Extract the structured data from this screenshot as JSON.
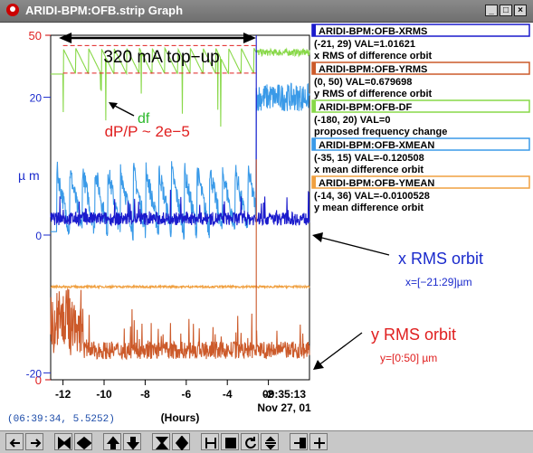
{
  "window": {
    "title": "ARIDI-BPM:OFB.strip Graph",
    "minimize": "_",
    "maximize": "□",
    "close": "×"
  },
  "coordinate_readout": "(06:39:34, 5.5252)",
  "colors": {
    "xrms": "#1a1acc",
    "yrms": "#cc5a2a",
    "df": "#88d848",
    "xmean": "#3a9ae8",
    "ymean": "#f0a040",
    "annot_blue": "#1a2acc",
    "annot_red": "#e02020",
    "annot_green": "#2ab82a"
  },
  "toolbar": {
    "icons": [
      "pan-left-icon",
      "pan-right-icon",
      "zoom-in-x-icon",
      "zoom-out-x-icon",
      "pan-up-icon",
      "pan-down-icon",
      "zoom-in-y-icon",
      "zoom-out-y-icon",
      "autoscale-icon",
      "fill-icon",
      "refresh-icon",
      "y-adjust-icon",
      "data-icon",
      "crosshair-icon"
    ]
  },
  "legend": [
    {
      "pv": "ARIDI-BPM:OFB-XRMS",
      "range": "(-21, 29) VAL=1.01621",
      "desc": "x RMS of difference orbit",
      "color": "#1a1acc"
    },
    {
      "pv": "ARIDI-BPM:OFB-YRMS",
      "range": "(0, 50) VAL=0.679698",
      "desc": "y RMS of difference orbit",
      "color": "#cc5a2a"
    },
    {
      "pv": "ARIDI-BPM:OFB-DF",
      "range": "(-180, 20) VAL=0",
      "desc": "proposed frequency change",
      "color": "#88d848"
    },
    {
      "pv": "ARIDI-BPM:OFB-XMEAN",
      "range": "(-35, 15) VAL=-0.120508",
      "desc": "x mean difference orbit",
      "color": "#3a9ae8"
    },
    {
      "pv": "ARIDI-BPM:OFB-YMEAN",
      "range": "(-14, 36) VAL=-0.0100528",
      "desc": "y mean difference orbit",
      "color": "#f0a040"
    }
  ],
  "annotations": {
    "topup": "320 mA top−up",
    "df": "df",
    "dpp": "dP/P ~ 2e−5",
    "xrms": "x RMS orbit",
    "xrange": "x=[−21:29]µm",
    "yrms": "y RMS orbit",
    "yrange": "y=[0:50] µm",
    "um": "µ m"
  },
  "chart_data": {
    "type": "line",
    "xlabel": "(Hours)",
    "x_ticks": [
      "-12",
      "-10",
      "-8",
      "-6",
      "-4",
      "-2"
    ],
    "x_end_label": "09:35:13",
    "date_label": "Nov 27, 01",
    "xlim": [
      -12.6,
      0
    ],
    "left_axis_red": {
      "ticks": [
        "50",
        "0"
      ],
      "ylim": [
        0,
        50
      ]
    },
    "left_axis_blue": {
      "ticks": [
        "20",
        "0",
        "-20"
      ],
      "ylim": [
        -21,
        29
      ]
    },
    "series": [
      {
        "name": "ARIDI-BPM:OFB-DF",
        "shape": "sawtooth",
        "ylim": [
          -180,
          20
        ],
        "base": 5,
        "amplitude": 15,
        "period_h": 0.62,
        "t_from": -12,
        "t_to": -2.6,
        "after_level": 10
      },
      {
        "name": "ARIDI-BPM:OFB-XMEAN",
        "shape": "sawtooth_noisy",
        "ylim": [
          -35,
          15
        ],
        "base": -9,
        "amplitude": 9,
        "period_h": 0.62,
        "t_from": -12.3,
        "t_to": -2.6,
        "after_level": 6
      },
      {
        "name": "ARIDI-BPM:OFB-XRMS",
        "shape": "noisy",
        "ylim": [
          -21,
          29
        ],
        "base": 1.8,
        "noise": 1.2,
        "spike_at": -2.6,
        "spike_to": 29
      },
      {
        "name": "ARIDI-BPM:OFB-YMEAN",
        "shape": "flat",
        "ylim": [
          -14,
          36
        ],
        "base": -0.5,
        "noise": 0.3
      },
      {
        "name": "ARIDI-BPM:OFB-YRMS",
        "shape": "noisy",
        "ylim": [
          0,
          50
        ],
        "base": 3.5,
        "noise": 1.6,
        "early_bump": 8,
        "spike_at": -2.6,
        "spike_to": 32
      }
    ]
  }
}
